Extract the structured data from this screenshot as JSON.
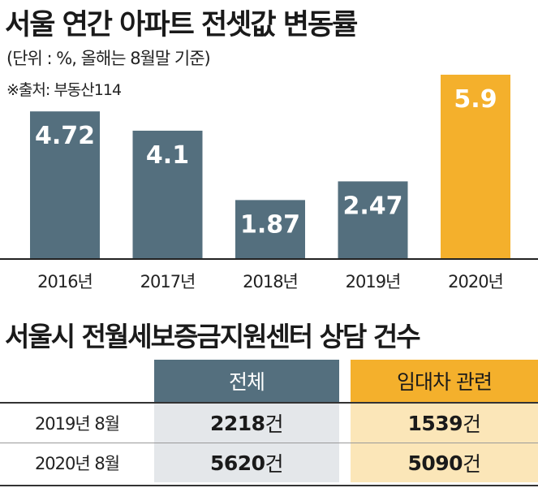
{
  "title": "서울 연간 아파트 전셋값 변동률",
  "unit_note": "(단위 : %, 올해는 8월말 기준)",
  "source_note": "※출처: 부동산114",
  "colors": {
    "bar_default": "#546f7e",
    "bar_highlight": "#f4b02c",
    "header_col1": "#546f7e",
    "header_col2": "#f4b02c",
    "body_col1": "#e4e7ea",
    "body_col2": "#fbe6b8"
  },
  "chart_data": {
    "type": "bar",
    "categories": [
      "2016년",
      "2017년",
      "2018년",
      "2019년",
      "2020년"
    ],
    "values": [
      4.72,
      4.1,
      1.87,
      2.47,
      5.9
    ],
    "value_labels": [
      "4.72",
      "4.1",
      "1.87",
      "2.47",
      "5.9"
    ],
    "highlight_index": 4,
    "ylim": [
      0,
      5.9
    ],
    "grid": false,
    "title": "서울 연간 아파트 전셋값 변동률"
  },
  "table": {
    "title": "서울시 전월세보증금지원센터 상담 건수",
    "headers": [
      "전체",
      "임대차 관련"
    ],
    "rows": [
      {
        "label": "2019년 8월",
        "values": [
          "2218",
          "1539"
        ],
        "suffix": "건"
      },
      {
        "label": "2020년 8월",
        "values": [
          "5620",
          "5090"
        ],
        "suffix": "건"
      }
    ]
  }
}
